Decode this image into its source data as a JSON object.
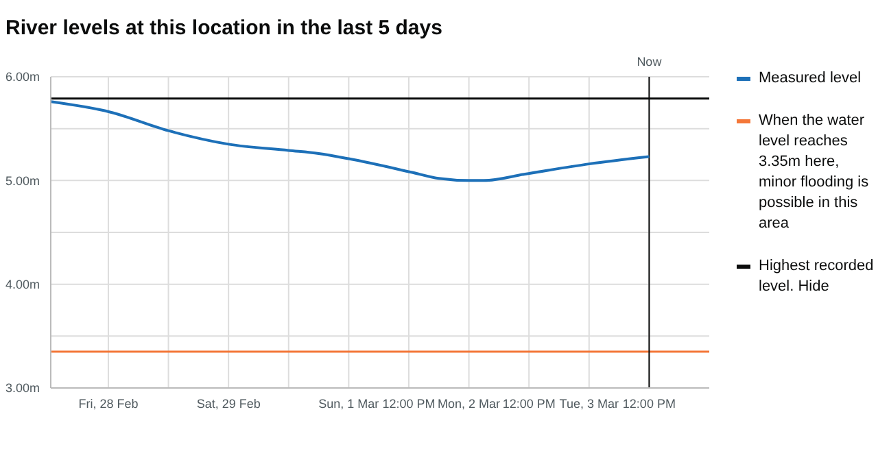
{
  "chart_data": {
    "type": "line",
    "title": "River levels at this location in the last 5 days",
    "x": [
      "--02-27T12:30",
      "--02-28T00:20",
      "--02-28T12:00",
      "--02-29T00:00",
      "--02-29T12:00",
      "--02-29T18:00",
      "--03-01T00:00",
      "--03-01T12:30",
      "--03-01T18:00",
      "--03-02T00:00",
      "--03-02T03:00",
      "--03-02T11:00",
      "--03-03T00:00",
      "--03-03T12:00"
    ],
    "series": [
      {
        "name": "Measured level",
        "color": "#1d70b8",
        "values": [
          5.76,
          5.66,
          5.48,
          5.35,
          5.29,
          5.26,
          5.21,
          5.08,
          5.02,
          5.0,
          5.0,
          5.06,
          5.16,
          5.23
        ]
      }
    ],
    "xlim": [
      "--02-27T12:30",
      "--03-04T00:00"
    ],
    "xticks": [
      {
        "value": "--02-28T00:00",
        "label": "Fri, 28 Feb"
      },
      {
        "value": "--02-28T12:00",
        "label": null
      },
      {
        "value": "--02-29T00:00",
        "label": "Sat, 29 Feb"
      },
      {
        "value": "--02-29T12:00",
        "label": null
      },
      {
        "value": "--03-01T00:00",
        "label": "Sun, 1 Mar"
      },
      {
        "value": "--03-01T12:00",
        "label": "12:00 PM"
      },
      {
        "value": "--03-02T00:00",
        "label": "Mon, 2 Mar"
      },
      {
        "value": "--03-02T12:00",
        "label": "12:00 PM"
      },
      {
        "value": "--03-03T00:00",
        "label": "Tue, 3 Mar"
      },
      {
        "value": "--03-03T12:00",
        "label": "12:00 PM"
      }
    ],
    "ylim": [
      3,
      6
    ],
    "yticks": [
      {
        "value": 3,
        "label": "3.00m"
      },
      {
        "value": 3.5,
        "label": null
      },
      {
        "value": 4,
        "label": "4.00m"
      },
      {
        "value": 4.5,
        "label": null
      },
      {
        "value": 5,
        "label": "5.00m"
      },
      {
        "value": 5.5,
        "label": null
      },
      {
        "value": 6,
        "label": "6.00m"
      }
    ],
    "ref_lines": [
      {
        "axis": "y",
        "value": 3.35,
        "label": "When the water level reaches 3.35m here, minor flooding is possible in this area",
        "color": "#f47738"
      },
      {
        "axis": "y",
        "value": 5.79,
        "label": "Highest recorded level. Hide",
        "color": "#0b0c0c"
      },
      {
        "axis": "x",
        "value": "--03-03T12:00",
        "label": "Now",
        "color": "#0b0c0c"
      }
    ],
    "grid": true,
    "legend": "right",
    "marker": "none",
    "line_style": "solid"
  }
}
